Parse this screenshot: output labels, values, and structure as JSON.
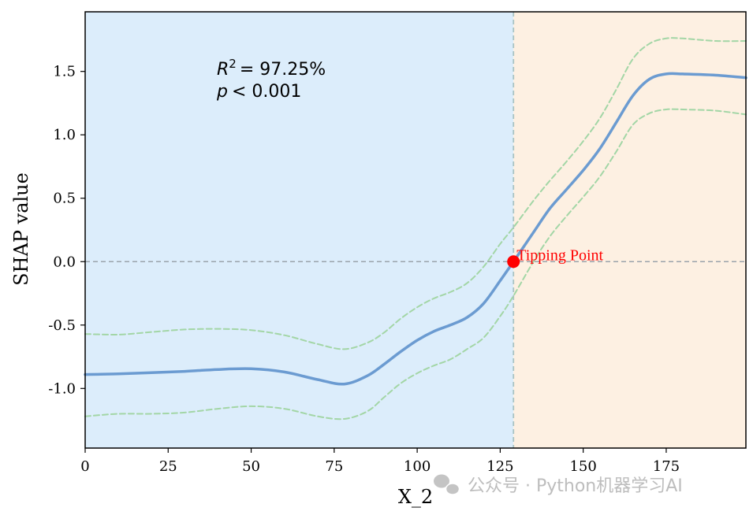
{
  "chart_data": {
    "type": "line",
    "xlabel": "X_2",
    "ylabel": "SHAP value",
    "xlim": [
      0,
      199
    ],
    "ylim": [
      -1.47,
      1.97
    ],
    "xticks": [
      0,
      25,
      50,
      75,
      100,
      125,
      150,
      175
    ],
    "xtick_labels": [
      "0",
      "25",
      "50",
      "75",
      "100",
      "125",
      "150",
      "175"
    ],
    "yticks": [
      -1.0,
      -0.5,
      0.0,
      0.5,
      1.0,
      1.5
    ],
    "ytick_labels": [
      "-1.0",
      "-0.5",
      "0.0",
      "0.5",
      "1.0",
      "1.5"
    ],
    "grid": false,
    "regions": [
      {
        "x_start": 0,
        "x_end": 129,
        "color": "#dcedfb"
      },
      {
        "x_start": 129,
        "x_end": 199,
        "color": "#fdf0e2"
      }
    ],
    "reference_lines": {
      "y_zero": 0,
      "x_tipping": 129
    },
    "series": [
      {
        "role": "fit",
        "color": "#6b9bd1",
        "x": [
          0,
          10,
          20,
          30,
          40,
          50,
          60,
          70,
          78,
          85,
          90,
          95,
          100,
          105,
          110,
          115,
          120,
          125,
          129,
          135,
          140,
          145,
          150,
          155,
          160,
          165,
          170,
          175,
          180,
          190,
          199
        ],
        "y": [
          -0.89,
          -0.885,
          -0.875,
          -0.865,
          -0.85,
          -0.845,
          -0.87,
          -0.93,
          -0.965,
          -0.9,
          -0.81,
          -0.71,
          -0.62,
          -0.55,
          -0.5,
          -0.44,
          -0.33,
          -0.15,
          0.0,
          0.23,
          0.42,
          0.57,
          0.72,
          0.89,
          1.1,
          1.31,
          1.44,
          1.48,
          1.48,
          1.47,
          1.45
        ]
      },
      {
        "role": "upper_ci",
        "color": "#a3d6a6",
        "x": [
          0,
          10,
          20,
          30,
          40,
          50,
          60,
          70,
          78,
          85,
          90,
          95,
          100,
          105,
          110,
          115,
          120,
          125,
          129,
          135,
          140,
          145,
          150,
          155,
          160,
          165,
          170,
          175,
          180,
          190,
          199
        ],
        "y": [
          -0.57,
          -0.575,
          -0.555,
          -0.535,
          -0.53,
          -0.54,
          -0.58,
          -0.65,
          -0.69,
          -0.64,
          -0.56,
          -0.45,
          -0.36,
          -0.29,
          -0.24,
          -0.17,
          -0.04,
          0.14,
          0.27,
          0.48,
          0.64,
          0.79,
          0.95,
          1.13,
          1.36,
          1.6,
          1.72,
          1.76,
          1.76,
          1.74,
          1.74
        ]
      },
      {
        "role": "lower_ci",
        "color": "#a3d6a6",
        "x": [
          0,
          10,
          20,
          30,
          40,
          50,
          60,
          70,
          78,
          85,
          90,
          95,
          100,
          105,
          110,
          115,
          120,
          125,
          129,
          135,
          140,
          145,
          150,
          155,
          160,
          165,
          170,
          175,
          180,
          190,
          199
        ],
        "y": [
          -1.22,
          -1.2,
          -1.2,
          -1.19,
          -1.16,
          -1.14,
          -1.16,
          -1.22,
          -1.24,
          -1.18,
          -1.07,
          -0.96,
          -0.88,
          -0.82,
          -0.77,
          -0.69,
          -0.6,
          -0.43,
          -0.27,
          0.0,
          0.2,
          0.36,
          0.51,
          0.67,
          0.87,
          1.08,
          1.17,
          1.2,
          1.2,
          1.19,
          1.16
        ]
      }
    ],
    "tipping_point": {
      "x": 129,
      "y": 0.0,
      "label": "Tipping Point",
      "color": "#ff0000"
    },
    "annotation_lines": [
      "= 97.25%",
      "< 0.001"
    ],
    "annotation_symbols": {
      "r": "R",
      "sup": "2",
      "p": "p"
    }
  },
  "watermark": {
    "text": "公众号 · Python机器学习AI",
    "icon": "wechat-icon"
  }
}
